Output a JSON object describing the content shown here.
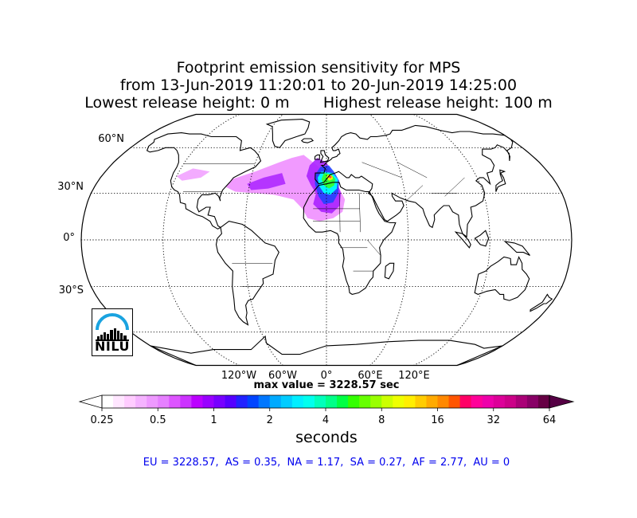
{
  "title": {
    "line1": "Footprint emission sensitivity for MPS",
    "line2": "from 13-Jun-2019 11:20:01 to 20-Jun-2019 14:25:00",
    "line3": "Lowest release height: 0 m       Highest release height: 100 m"
  },
  "map": {
    "projection": "Robinson",
    "latitude_labels": [
      "60°N",
      "30°N",
      "0°",
      "30°S"
    ],
    "longitude_labels": [
      "120°W",
      "60°W",
      "0°",
      "60°E",
      "120°E"
    ],
    "max_value_text": "max value = 3228.57 sec",
    "colors": {
      "outline": "#000000",
      "grid": "#000000",
      "plume_low": "#ee88ff",
      "plume_mid": "#aa22ff",
      "plume_blue": "#2244ff",
      "plume_cyan": "#00ffff",
      "plume_green": "#33ff33",
      "plume_yellow": "#ffee00",
      "plume_hot": "#ff1166"
    }
  },
  "logo": {
    "text": "NILU",
    "arc_color": "#1aa3e0"
  },
  "colorbar": {
    "ticks": [
      "0.25",
      "0.5",
      "1",
      "2",
      "4",
      "8",
      "16",
      "32",
      "64"
    ],
    "unit_label": "seconds",
    "colors": [
      "#ffffff",
      "#ffe6ff",
      "#ffccff",
      "#f5b3ff",
      "#ee99ff",
      "#e680ff",
      "#dd55ff",
      "#cc33ff",
      "#bb00ff",
      "#9900ff",
      "#7700ff",
      "#5500ff",
      "#2222ff",
      "#0044ff",
      "#0077ff",
      "#00aaff",
      "#00ccff",
      "#00eeff",
      "#00ffee",
      "#00ffbb",
      "#00ff88",
      "#00ff44",
      "#33ff00",
      "#66ff00",
      "#99ff00",
      "#ccff00",
      "#eeff00",
      "#ffee00",
      "#ffcc00",
      "#ffaa00",
      "#ff8800",
      "#ff5500",
      "#ff0066",
      "#ff0099",
      "#ee00aa",
      "#dd0099",
      "#cc0088",
      "#aa0077",
      "#880066",
      "#660044"
    ]
  },
  "region_stats": {
    "text": "EU = 3228.57,  AS = 0.35,  NA = 1.17,  SA = 0.27,  AF = 2.77,  AU = 0"
  }
}
